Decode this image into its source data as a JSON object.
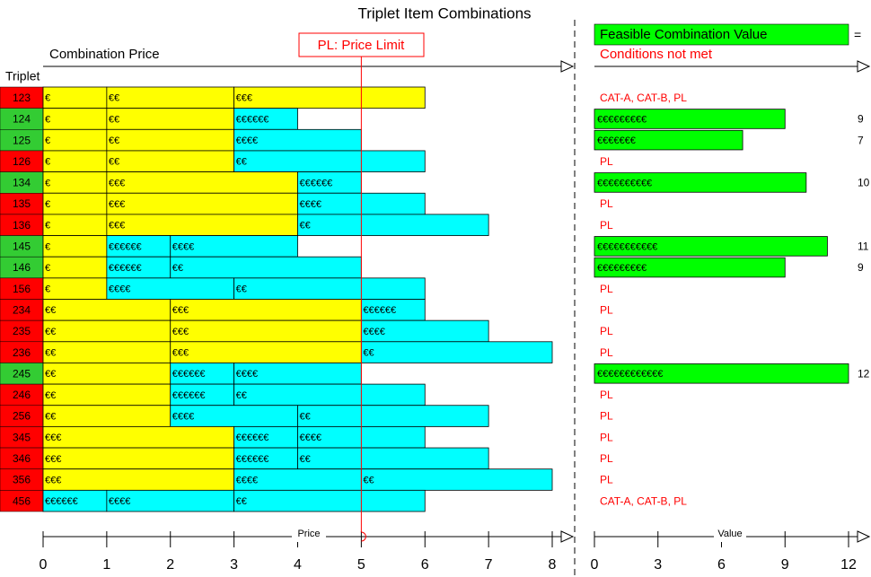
{
  "chart_data": {
    "type": "triplet-combinations",
    "title": "Triplet Item Combinations",
    "price_axis_label": "Combination Price",
    "row_axis_label": "Triplet",
    "price_limit": {
      "value": 5,
      "label": "PL: Price Limit",
      "color": "#ff0000"
    },
    "legend": {
      "feasible": "Feasible Combination Value",
      "equals": "=",
      "not_met": "Conditions not met",
      "feasible_color": "#00ff00",
      "not_met_color": "#ff0000"
    },
    "xlabel": "Price",
    "xlim": [
      0,
      8
    ],
    "xticks": [
      0,
      1,
      2,
      3,
      4,
      5,
      6,
      7,
      8
    ],
    "value_axis_label": "Value",
    "vlim": [
      0,
      12
    ],
    "vticks": [
      0,
      3,
      6,
      9,
      12
    ],
    "rows": [
      {
        "label": "123",
        "color": "#ff0000",
        "segments": [
          {
            "label": "€",
            "value": 1,
            "color": "#ffff00"
          },
          {
            "label": "€€",
            "value": 2,
            "color": "#ffff00"
          },
          {
            "label": "€€€",
            "value": 3,
            "color": "#ffff00"
          }
        ],
        "condition": "CAT-A, CAT-B, PL"
      },
      {
        "label": "124",
        "color": "#33cc33",
        "segments": [
          {
            "label": "€",
            "value": 1,
            "color": "#ffff00"
          },
          {
            "label": "€€",
            "value": 2,
            "color": "#ffff00"
          },
          {
            "label": "€€€€€€",
            "value": 1,
            "color": "#00ffff"
          }
        ],
        "value": 9,
        "value_label": "€€€€€€€€€"
      },
      {
        "label": "125",
        "color": "#33cc33",
        "segments": [
          {
            "label": "€",
            "value": 1,
            "color": "#ffff00"
          },
          {
            "label": "€€",
            "value": 2,
            "color": "#ffff00"
          },
          {
            "label": "€€€€",
            "value": 2,
            "color": "#00ffff"
          }
        ],
        "value": 7,
        "value_label": "€€€€€€€"
      },
      {
        "label": "126",
        "color": "#ff0000",
        "segments": [
          {
            "label": "€",
            "value": 1,
            "color": "#ffff00"
          },
          {
            "label": "€€",
            "value": 2,
            "color": "#ffff00"
          },
          {
            "label": "€€",
            "value": 3,
            "color": "#00ffff"
          }
        ],
        "condition": "PL"
      },
      {
        "label": "134",
        "color": "#33cc33",
        "segments": [
          {
            "label": "€",
            "value": 1,
            "color": "#ffff00"
          },
          {
            "label": "€€€",
            "value": 3,
            "color": "#ffff00"
          },
          {
            "label": "€€€€€€",
            "value": 1,
            "color": "#00ffff"
          }
        ],
        "value": 10,
        "value_label": "€€€€€€€€€€"
      },
      {
        "label": "135",
        "color": "#ff0000",
        "segments": [
          {
            "label": "€",
            "value": 1,
            "color": "#ffff00"
          },
          {
            "label": "€€€",
            "value": 3,
            "color": "#ffff00"
          },
          {
            "label": "€€€€",
            "value": 2,
            "color": "#00ffff"
          }
        ],
        "condition": "PL"
      },
      {
        "label": "136",
        "color": "#ff0000",
        "segments": [
          {
            "label": "€",
            "value": 1,
            "color": "#ffff00"
          },
          {
            "label": "€€€",
            "value": 3,
            "color": "#ffff00"
          },
          {
            "label": "€€",
            "value": 3,
            "color": "#00ffff"
          }
        ],
        "condition": "PL"
      },
      {
        "label": "145",
        "color": "#33cc33",
        "segments": [
          {
            "label": "€",
            "value": 1,
            "color": "#ffff00"
          },
          {
            "label": "€€€€€€",
            "value": 1,
            "color": "#00ffff"
          },
          {
            "label": "€€€€",
            "value": 2,
            "color": "#00ffff"
          }
        ],
        "value": 11,
        "value_label": "€€€€€€€€€€€"
      },
      {
        "label": "146",
        "color": "#33cc33",
        "segments": [
          {
            "label": "€",
            "value": 1,
            "color": "#ffff00"
          },
          {
            "label": "€€€€€€",
            "value": 1,
            "color": "#00ffff"
          },
          {
            "label": "€€",
            "value": 3,
            "color": "#00ffff"
          }
        ],
        "value": 9,
        "value_label": "€€€€€€€€€"
      },
      {
        "label": "156",
        "color": "#ff0000",
        "segments": [
          {
            "label": "€",
            "value": 1,
            "color": "#ffff00"
          },
          {
            "label": "€€€€",
            "value": 2,
            "color": "#00ffff"
          },
          {
            "label": "€€",
            "value": 3,
            "color": "#00ffff"
          }
        ],
        "condition": "PL"
      },
      {
        "label": "234",
        "color": "#ff0000",
        "segments": [
          {
            "label": "€€",
            "value": 2,
            "color": "#ffff00"
          },
          {
            "label": "€€€",
            "value": 3,
            "color": "#ffff00"
          },
          {
            "label": "€€€€€€",
            "value": 1,
            "color": "#00ffff"
          }
        ],
        "condition": "PL"
      },
      {
        "label": "235",
        "color": "#ff0000",
        "segments": [
          {
            "label": "€€",
            "value": 2,
            "color": "#ffff00"
          },
          {
            "label": "€€€",
            "value": 3,
            "color": "#ffff00"
          },
          {
            "label": "€€€€",
            "value": 2,
            "color": "#00ffff"
          }
        ],
        "condition": "PL"
      },
      {
        "label": "236",
        "color": "#ff0000",
        "segments": [
          {
            "label": "€€",
            "value": 2,
            "color": "#ffff00"
          },
          {
            "label": "€€€",
            "value": 3,
            "color": "#ffff00"
          },
          {
            "label": "€€",
            "value": 3,
            "color": "#00ffff"
          }
        ],
        "condition": "PL"
      },
      {
        "label": "245",
        "color": "#33cc33",
        "segments": [
          {
            "label": "€€",
            "value": 2,
            "color": "#ffff00"
          },
          {
            "label": "€€€€€€",
            "value": 1,
            "color": "#00ffff"
          },
          {
            "label": "€€€€",
            "value": 2,
            "color": "#00ffff"
          }
        ],
        "value": 12,
        "value_label": "€€€€€€€€€€€€"
      },
      {
        "label": "246",
        "color": "#ff0000",
        "segments": [
          {
            "label": "€€",
            "value": 2,
            "color": "#ffff00"
          },
          {
            "label": "€€€€€€",
            "value": 1,
            "color": "#00ffff"
          },
          {
            "label": "€€",
            "value": 3,
            "color": "#00ffff"
          }
        ],
        "condition": "PL"
      },
      {
        "label": "256",
        "color": "#ff0000",
        "segments": [
          {
            "label": "€€",
            "value": 2,
            "color": "#ffff00"
          },
          {
            "label": "€€€€",
            "value": 2,
            "color": "#00ffff"
          },
          {
            "label": "€€",
            "value": 3,
            "color": "#00ffff"
          }
        ],
        "condition": "PL"
      },
      {
        "label": "345",
        "color": "#ff0000",
        "segments": [
          {
            "label": "€€€",
            "value": 3,
            "color": "#ffff00"
          },
          {
            "label": "€€€€€€",
            "value": 1,
            "color": "#00ffff"
          },
          {
            "label": "€€€€",
            "value": 2,
            "color": "#00ffff"
          }
        ],
        "condition": "PL"
      },
      {
        "label": "346",
        "color": "#ff0000",
        "segments": [
          {
            "label": "€€€",
            "value": 3,
            "color": "#ffff00"
          },
          {
            "label": "€€€€€€",
            "value": 1,
            "color": "#00ffff"
          },
          {
            "label": "€€",
            "value": 3,
            "color": "#00ffff"
          }
        ],
        "condition": "PL"
      },
      {
        "label": "356",
        "color": "#ff0000",
        "segments": [
          {
            "label": "€€€",
            "value": 3,
            "color": "#ffff00"
          },
          {
            "label": "€€€€",
            "value": 2,
            "color": "#00ffff"
          },
          {
            "label": "€€",
            "value": 3,
            "color": "#00ffff"
          }
        ],
        "condition": "PL"
      },
      {
        "label": "456",
        "color": "#ff0000",
        "segments": [
          {
            "label": "€€€€€€",
            "value": 1,
            "color": "#00ffff"
          },
          {
            "label": "€€€€",
            "value": 2,
            "color": "#00ffff"
          },
          {
            "label": "€€",
            "value": 3,
            "color": "#00ffff"
          }
        ],
        "condition": "CAT-A, CAT-B, PL"
      }
    ]
  }
}
